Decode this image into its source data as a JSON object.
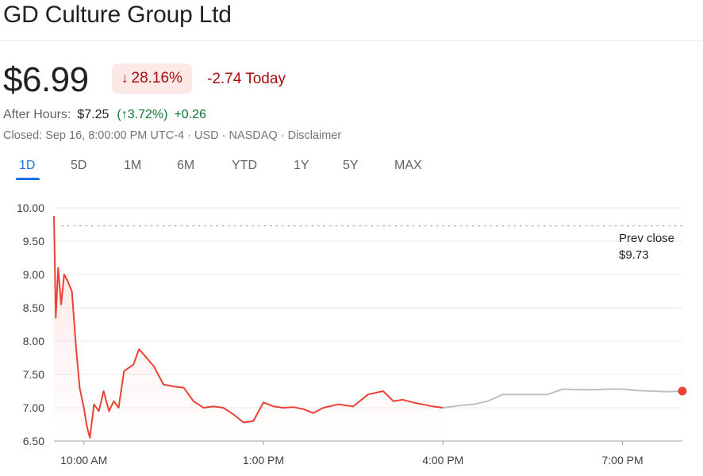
{
  "header": {
    "title": "GD Culture Group Ltd"
  },
  "quote": {
    "price": "$6.99",
    "change_percent": "28.16%",
    "change_direction_icon": "arrow-down-icon",
    "change_today": "-2.74 Today",
    "after_hours_label": "After Hours:",
    "after_hours_price": "$7.25",
    "after_hours_percent": "(↑3.72%)",
    "after_hours_change": "+0.26",
    "closed_line": "Closed: Sep 16, 8:00:00 PM UTC-4 · USD · NASDAQ · Disclaimer",
    "colors": {
      "down": "#a50e0e",
      "up": "#137333",
      "line": "#ea4335",
      "after_line": "#bdc1c6",
      "accent": "#1a73e8"
    }
  },
  "tabs": [
    {
      "label": "1D",
      "active": true
    },
    {
      "label": "5D",
      "active": false
    },
    {
      "label": "1M",
      "active": false
    },
    {
      "label": "6M",
      "active": false
    },
    {
      "label": "YTD",
      "active": false
    },
    {
      "label": "1Y",
      "active": false
    },
    {
      "label": "5Y",
      "active": false
    },
    {
      "label": "MAX",
      "active": false
    }
  ],
  "chart_data": {
    "type": "line",
    "ylim": [
      6.5,
      10.0
    ],
    "y_ticks": [
      "10.00",
      "9.50",
      "9.00",
      "8.50",
      "8.00",
      "7.50",
      "7.00",
      "6.50"
    ],
    "x_ticks": [
      "10:00 AM",
      "1:00 PM",
      "4:00 PM",
      "7:00 PM"
    ],
    "x_tick_hours": [
      10,
      13,
      16,
      19
    ],
    "xlim_hours": [
      9.5,
      20.0
    ],
    "grid": true,
    "prev_close": {
      "value": 9.73,
      "label": "Prev close",
      "value_label": "$9.73"
    },
    "series": [
      {
        "session": "regular",
        "x_hours": [
          9.5,
          9.53,
          9.57,
          9.62,
          9.67,
          9.73,
          9.8,
          9.87,
          9.93,
          10.0,
          10.05,
          10.1,
          10.17,
          10.25,
          10.33,
          10.42,
          10.5,
          10.58,
          10.67,
          10.75,
          10.83,
          10.92,
          11.0,
          11.17,
          11.33,
          11.5,
          11.67,
          11.83,
          12.0,
          12.17,
          12.33,
          12.5,
          12.67,
          12.83,
          13.0,
          13.17,
          13.33,
          13.5,
          13.67,
          13.83,
          14.0,
          14.25,
          14.5,
          14.75,
          15.0,
          15.17,
          15.33,
          15.5,
          15.67,
          15.83,
          16.0
        ],
        "values": [
          9.88,
          8.35,
          9.1,
          8.55,
          9.0,
          8.9,
          8.75,
          7.9,
          7.3,
          7.0,
          6.72,
          6.55,
          7.05,
          6.95,
          7.25,
          6.95,
          7.1,
          7.0,
          7.55,
          7.6,
          7.65,
          7.88,
          7.8,
          7.62,
          7.35,
          7.32,
          7.3,
          7.1,
          7.0,
          7.02,
          7.0,
          6.9,
          6.78,
          6.8,
          7.08,
          7.02,
          7.0,
          7.01,
          6.98,
          6.92,
          7.0,
          7.05,
          7.02,
          7.2,
          7.25,
          7.1,
          7.12,
          7.08,
          7.05,
          7.02,
          7.0
        ]
      },
      {
        "session": "after-hours",
        "x_hours": [
          16.0,
          16.25,
          16.5,
          16.75,
          17.0,
          17.25,
          17.5,
          17.75,
          18.0,
          18.25,
          18.5,
          18.75,
          19.0,
          19.25,
          19.5,
          19.75,
          20.0
        ],
        "values": [
          7.0,
          7.03,
          7.05,
          7.1,
          7.2,
          7.2,
          7.2,
          7.2,
          7.28,
          7.27,
          7.27,
          7.28,
          7.28,
          7.26,
          7.25,
          7.24,
          7.25
        ]
      }
    ],
    "end_marker_value": 7.25
  }
}
